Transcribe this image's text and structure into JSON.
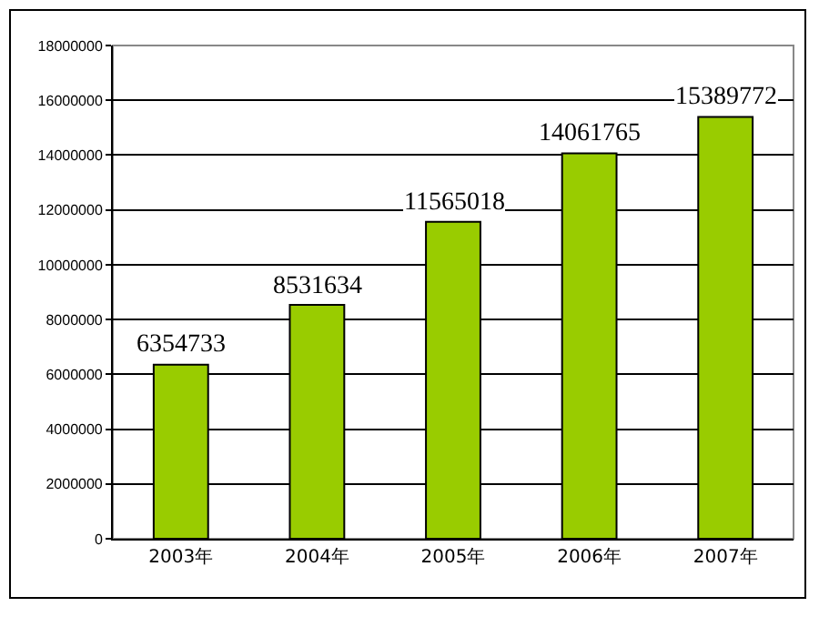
{
  "chart_data": {
    "type": "bar",
    "categories": [
      "2003年",
      "2004年",
      "2005年",
      "2006年",
      "2007年"
    ],
    "values": [
      6354733,
      8531634,
      11565018,
      14061765,
      15389772
    ],
    "color": "#99cc00",
    "ylim": [
      0,
      18000000
    ],
    "yticks": [
      0,
      2000000,
      4000000,
      6000000,
      8000000,
      10000000,
      12000000,
      14000000,
      16000000,
      18000000
    ],
    "grid": "y",
    "data_labels": true,
    "legend": false
  }
}
